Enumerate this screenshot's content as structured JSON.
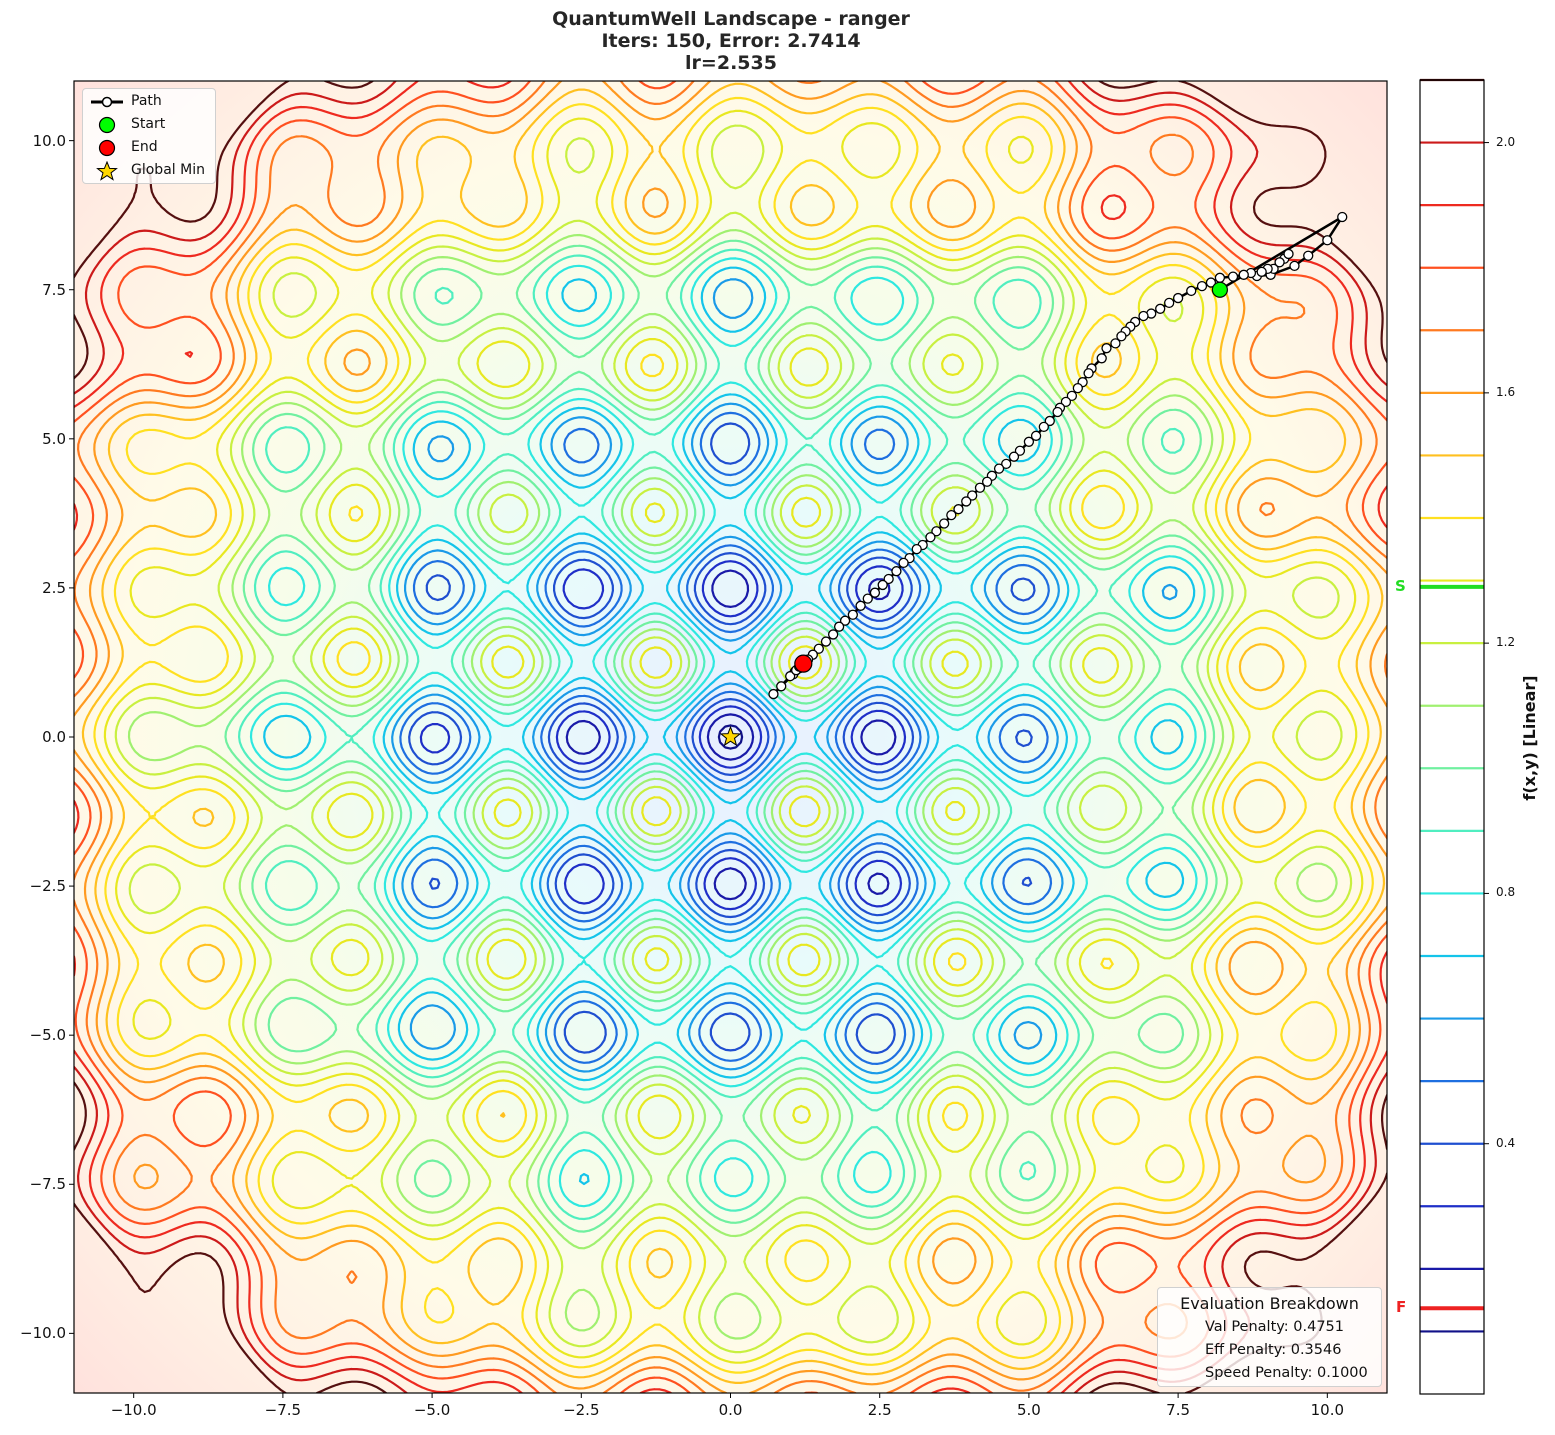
{
  "title": {
    "line1": "QuantumWell Landscape - ranger",
    "line2": "Iters: 150, Error: 2.7414",
    "line3": "lr=2.535"
  },
  "legend": {
    "items": [
      {
        "label": "Path",
        "symbol": "line-white-circle"
      },
      {
        "label": "Start",
        "symbol": "green-circle",
        "color": "#00ff00"
      },
      {
        "label": "End",
        "symbol": "red-circle",
        "color": "#ff0000"
      },
      {
        "label": "Global Min",
        "symbol": "gold-star",
        "color": "#ffd700"
      }
    ]
  },
  "evaluation": {
    "header": "Evaluation Breakdown",
    "val_penalty": "Val Penalty: 0.4751",
    "eff_penalty": "Eff Penalty: 0.3546",
    "speed_penalty": "Speed Penalty: 0.1000"
  },
  "colorbar": {
    "label": "f(x,y) [Linear]",
    "ticks": [
      "2.0",
      "1.6",
      "1.2",
      "0.8",
      "0.4"
    ],
    "tick_values": [
      2.0,
      1.6,
      1.2,
      0.8,
      0.4
    ],
    "range": [
      0.0,
      2.1
    ],
    "start_marker": {
      "label": "S",
      "value": 1.29,
      "color": "#22dd22"
    },
    "final_marker": {
      "label": "F",
      "value": 0.137,
      "color": "#ee2222"
    }
  },
  "chart_data": {
    "type": "contour",
    "title": "QuantumWell Landscape - ranger\nIters: 150, Error: 2.7414\nlr=2.535",
    "xlabel": "",
    "ylabel": "",
    "colorbar_label": "f(x,y) [Linear]",
    "xlim": [
      -11,
      11
    ],
    "ylim": [
      -11,
      11
    ],
    "xticks": [
      "−10.0",
      "−7.5",
      "−5.0",
      "−2.5",
      "0.0",
      "2.5",
      "5.0",
      "7.5",
      "10.0"
    ],
    "xtick_values": [
      -10,
      -7.5,
      -5,
      -2.5,
      0,
      2.5,
      5,
      7.5,
      10
    ],
    "yticks": [
      "10.0",
      "7.5",
      "5.0",
      "2.5",
      "0.0",
      "−2.5",
      "−5.0",
      "−7.5",
      "−10.0"
    ],
    "ytick_values": [
      10,
      7.5,
      5,
      2.5,
      0,
      -2.5,
      -5,
      -7.5,
      -10
    ],
    "contour_levels": [
      0.1,
      0.2,
      0.3,
      0.4,
      0.5,
      0.6,
      0.7,
      0.8,
      0.9,
      1.0,
      1.1,
      1.2,
      1.3,
      1.4,
      1.5,
      1.6,
      1.7,
      1.8,
      1.9,
      2.0,
      2.1
    ],
    "level_colors": [
      "#111188",
      "#1a1aa8",
      "#1f2fc8",
      "#1f4fd0",
      "#1e6fe0",
      "#1a9ae8",
      "#14c4ea",
      "#2ee8e0",
      "#50eec0",
      "#70f0a0",
      "#a0f070",
      "#c8f040",
      "#e8e820",
      "#ffe020",
      "#ffc020",
      "#ff9a20",
      "#ff7a20",
      "#ff5020",
      "#ee2a20",
      "#cc1a1a",
      "#551010"
    ],
    "global_min": {
      "x": 0.0,
      "y": 0.0
    },
    "start": {
      "x": 8.2,
      "y": 7.5
    },
    "end": {
      "x": 1.22,
      "y": 1.23
    },
    "final_error": 2.7414,
    "iterations": 150,
    "learning_rate": 2.535,
    "path": [
      [
        8.2,
        7.5
      ],
      [
        10.25,
        8.72
      ],
      [
        10.0,
        8.33
      ],
      [
        9.68,
        8.07
      ],
      [
        9.45,
        7.9
      ],
      [
        9.05,
        7.75
      ],
      [
        8.82,
        7.73
      ],
      [
        8.72,
        7.78
      ],
      [
        9.1,
        7.85
      ],
      [
        9.28,
        8.02
      ],
      [
        9.35,
        8.1
      ],
      [
        9.2,
        7.96
      ],
      [
        9.0,
        7.85
      ],
      [
        8.9,
        7.8
      ],
      [
        8.6,
        7.75
      ],
      [
        8.42,
        7.72
      ],
      [
        8.2,
        7.7
      ],
      [
        8.05,
        7.62
      ],
      [
        7.9,
        7.56
      ],
      [
        7.72,
        7.48
      ],
      [
        7.5,
        7.36
      ],
      [
        7.35,
        7.28
      ],
      [
        7.2,
        7.18
      ],
      [
        7.05,
        7.1
      ],
      [
        6.92,
        7.06
      ],
      [
        6.78,
        6.96
      ],
      [
        6.7,
        6.88
      ],
      [
        6.62,
        6.8
      ],
      [
        6.55,
        6.72
      ],
      [
        6.45,
        6.6
      ],
      [
        6.3,
        6.52
      ],
      [
        6.22,
        6.35
      ],
      [
        6.05,
        6.18
      ],
      [
        6.0,
        6.1
      ],
      [
        5.9,
        5.95
      ],
      [
        5.82,
        5.85
      ],
      [
        5.72,
        5.72
      ],
      [
        5.62,
        5.62
      ],
      [
        5.52,
        5.52
      ],
      [
        5.48,
        5.45
      ],
      [
        5.35,
        5.3
      ],
      [
        5.25,
        5.2
      ],
      [
        5.12,
        5.05
      ],
      [
        5.0,
        4.95
      ],
      [
        4.85,
        4.8
      ],
      [
        4.75,
        4.7
      ],
      [
        4.62,
        4.58
      ],
      [
        4.5,
        4.5
      ],
      [
        4.38,
        4.38
      ],
      [
        4.3,
        4.28
      ],
      [
        4.18,
        4.18
      ],
      [
        4.05,
        4.05
      ],
      [
        3.95,
        3.95
      ],
      [
        3.82,
        3.82
      ],
      [
        3.7,
        3.72
      ],
      [
        3.58,
        3.58
      ],
      [
        3.45,
        3.45
      ],
      [
        3.35,
        3.35
      ],
      [
        3.22,
        3.22
      ],
      [
        3.12,
        3.15
      ],
      [
        3.0,
        3.0
      ],
      [
        2.9,
        2.92
      ],
      [
        2.78,
        2.78
      ],
      [
        2.65,
        2.65
      ],
      [
        2.55,
        2.55
      ],
      [
        2.42,
        2.42
      ],
      [
        2.3,
        2.32
      ],
      [
        2.18,
        2.2
      ],
      [
        2.05,
        2.05
      ],
      [
        1.92,
        1.95
      ],
      [
        1.82,
        1.85
      ],
      [
        1.72,
        1.72
      ],
      [
        1.6,
        1.6
      ],
      [
        1.48,
        1.48
      ],
      [
        1.38,
        1.38
      ],
      [
        1.3,
        1.3
      ],
      [
        1.22,
        1.23
      ],
      [
        1.15,
        1.15
      ],
      [
        1.08,
        1.1
      ],
      [
        1.05,
        1.05
      ],
      [
        0.85,
        0.85
      ],
      [
        0.72,
        0.72
      ],
      [
        1.0,
        1.02
      ],
      [
        1.1,
        1.12
      ],
      [
        1.15,
        1.18
      ],
      [
        1.2,
        1.2
      ],
      [
        1.22,
        1.23
      ]
    ]
  }
}
